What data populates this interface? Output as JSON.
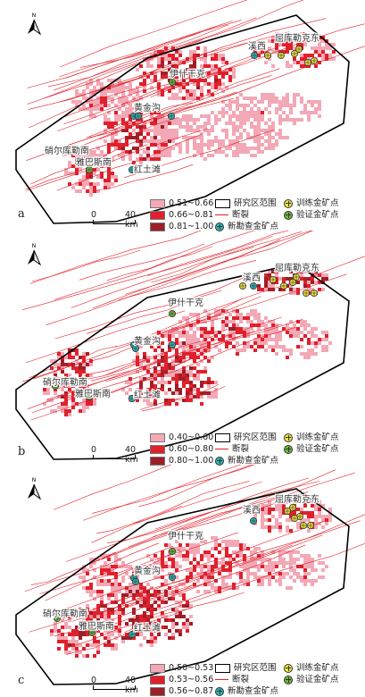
{
  "panels": [
    {
      "id": "a",
      "label": "a",
      "legend": {
        "classes": [
          {
            "label": "0.51~0.66",
            "color": "#f3a8b6"
          },
          {
            "label": "0.66~0.81",
            "color": "#e0202b"
          },
          {
            "label": "0.81~1.00",
            "color": "#9d1f28"
          }
        ]
      }
    },
    {
      "id": "b",
      "label": "b",
      "legend": {
        "classes": [
          {
            "label": "0.40~0.60",
            "color": "#f3a8b6"
          },
          {
            "label": "0.60~0.80",
            "color": "#e0202b"
          },
          {
            "label": "0.80~1.00",
            "color": "#9d1f28"
          }
        ]
      }
    },
    {
      "id": "c",
      "label": "c",
      "legend": {
        "classes": [
          {
            "label": "0.50~0.53",
            "color": "#f3a8b6"
          },
          {
            "label": "0.53~0.56",
            "color": "#e0202b"
          },
          {
            "label": "0.56~0.87",
            "color": "#9d1f28"
          }
        ]
      }
    }
  ],
  "legend_common": {
    "study_area": "研究区范围",
    "fault": "断裂",
    "new_prospect": "新勘查金矿点",
    "training_point": "训练金矿点",
    "validation_point": "验证金矿点"
  },
  "place_names": {
    "north": "屈库勒克东",
    "xixi": "溪西",
    "mid": "伊什干克",
    "yuehuang": "黄金沟",
    "west": "硝尔库勒南",
    "south": "雅巴斯南",
    "red": "红土滩"
  },
  "scale": {
    "zero": "0",
    "distance": "40 km"
  },
  "north_arrow": {
    "label": "N"
  },
  "colors": {
    "low": "#f3a8b6",
    "mid": "#e0202b",
    "high": "#9d1f28",
    "fault": "#e0202b",
    "training": "#f1e43b",
    "validation": "#6bb83a",
    "new": "#2fb8b5"
  }
}
